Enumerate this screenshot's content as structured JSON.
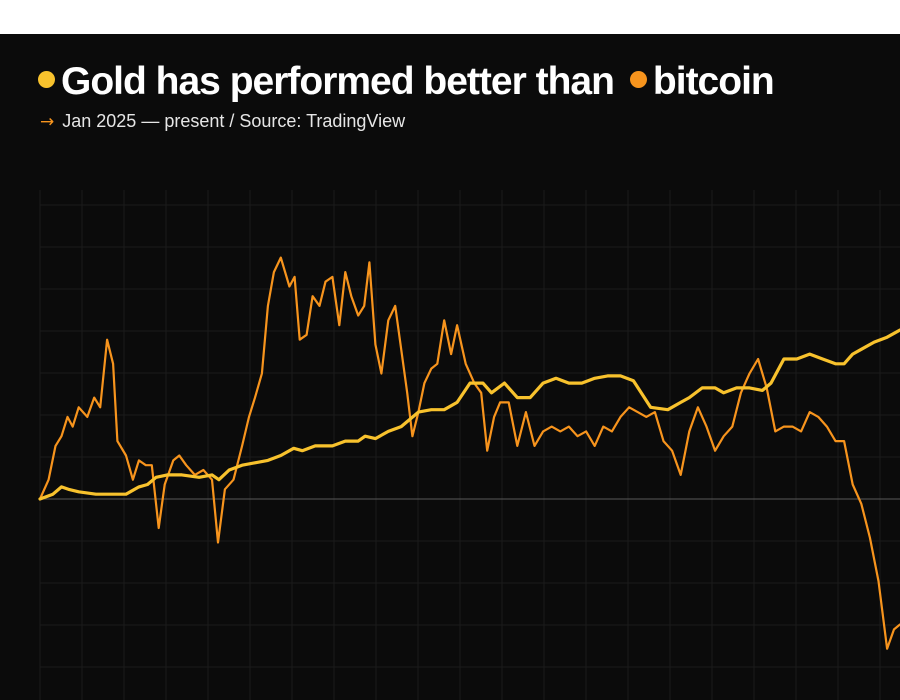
{
  "header": {
    "title_part1": "Gold has performed better than",
    "title_part2": "bitcoin",
    "subtitle": "Jan 2025 — present / Source: TradingView",
    "subtitle_arrow": "→"
  },
  "colors": {
    "background": "#0b0b0b",
    "gold": "#f8c22d",
    "bitcoin": "#f7941d",
    "grid": "#1b1b1b",
    "baseline": "#5a5a5a"
  },
  "chart_data": {
    "type": "line",
    "title": "Gold has performed better than bitcoin",
    "subtitle": "Jan 2025 — present / Source: TradingView",
    "xlabel": "",
    "ylabel": "",
    "grid": true,
    "baseline": 0,
    "ylim": [
      -48,
      70
    ],
    "xlim": [
      0,
      100
    ],
    "series": [
      {
        "name": "Gold",
        "color": "#f8c22d",
        "x": [
          0,
          1.5,
          2.5,
          3.3,
          4.5,
          6.5,
          8.7,
          10,
          11.5,
          12.5,
          13.5,
          14.8,
          16.5,
          18.5,
          20,
          20.8,
          22,
          23.5,
          25,
          26.5,
          28,
          29.5,
          30.5,
          32,
          34,
          35.5,
          37,
          37.8,
          39,
          40.5,
          42,
          44,
          45.5,
          47,
          48.5,
          50,
          51.5,
          52.5,
          54,
          55.5,
          57,
          58.5,
          60,
          61.5,
          63,
          64.5,
          66,
          67.5,
          69,
          71,
          73,
          74.5,
          75.5,
          77,
          78.5,
          79.5,
          81,
          82.5,
          84,
          85,
          86.5,
          88,
          89.5,
          91,
          92.5,
          93.5,
          94.5,
          95.5,
          97,
          98.5,
          100
        ],
        "values": [
          0,
          1,
          2.5,
          2,
          1.5,
          1,
          1,
          1,
          2.5,
          3,
          4.5,
          5,
          5,
          4.5,
          5,
          4,
          6,
          7,
          7.5,
          8,
          9,
          10.5,
          10,
          11,
          11,
          12,
          12,
          13,
          12.5,
          14,
          15,
          18,
          18.5,
          18.5,
          20,
          24,
          24,
          22,
          24,
          21,
          21,
          24,
          25,
          24,
          24,
          25,
          25.5,
          25.5,
          24.5,
          19,
          18.5,
          20,
          21,
          23,
          23,
          22,
          23,
          23,
          22.5,
          24,
          29,
          29,
          30,
          29,
          28,
          28,
          30,
          31,
          32.5,
          33.5,
          35
        ]
      },
      {
        "name": "Bitcoin",
        "color": "#f7941d",
        "x": [
          0,
          1,
          1.8,
          2.5,
          3.2,
          3.8,
          4.5,
          5.5,
          6.3,
          7,
          7.8,
          8.5,
          9,
          10,
          10.8,
          11.5,
          12.3,
          13,
          13.8,
          14.5,
          15.5,
          16.2,
          17,
          18,
          19,
          20,
          20.7,
          21.5,
          22.5,
          23.5,
          24.3,
          25,
          25.8,
          26.5,
          27.2,
          28,
          29,
          29.6,
          30.2,
          31,
          31.7,
          32.5,
          33.2,
          34,
          34.8,
          35.5,
          36.2,
          37,
          37.7,
          38.3,
          39,
          39.7,
          40.5,
          41.3,
          42,
          42.7,
          43.3,
          44,
          44.7,
          45.5,
          46.2,
          47,
          47.8,
          48.5,
          49.5,
          50.5,
          51.3,
          52,
          52.8,
          53.5,
          54.5,
          55.5,
          56.5,
          57.5,
          58.5,
          59.5,
          60.5,
          61.5,
          62.5,
          63.5,
          64.5,
          65.5,
          66.5,
          67.5,
          68.5,
          69.5,
          70.5,
          71.5,
          72.5,
          73.5,
          74.5,
          75.5,
          76.5,
          77.5,
          78.5,
          79.5,
          80.5,
          81.5,
          82.5,
          83.5,
          84.5,
          85.5,
          86.5,
          87.5,
          88.5,
          89.5,
          90.5,
          91.5,
          92.5,
          93.5,
          94.5,
          95.5,
          96.5,
          97.5,
          98.5,
          99.3,
          100
        ],
        "values": [
          0,
          4,
          11,
          13,
          17,
          15,
          19,
          17,
          21,
          19,
          33,
          28,
          12,
          9,
          4,
          8,
          7,
          7,
          -6,
          3,
          8,
          9,
          7,
          5,
          6,
          4,
          -9,
          2,
          4,
          11,
          17,
          21,
          26,
          40,
          47,
          50,
          44,
          46,
          33,
          34,
          42,
          40,
          45,
          46,
          36,
          47,
          42,
          38,
          40,
          49,
          32,
          26,
          37,
          40,
          31,
          22,
          13,
          18,
          24,
          27,
          28,
          37,
          30,
          36,
          28,
          24,
          22,
          10,
          17,
          20,
          20,
          11,
          18,
          11,
          14,
          15,
          14,
          15,
          13,
          14,
          11,
          15,
          14,
          17,
          19,
          18,
          17,
          18,
          12,
          10,
          5,
          14,
          19,
          15,
          10,
          13,
          15,
          22,
          26,
          29,
          23,
          14,
          15,
          15,
          14,
          18,
          17,
          15,
          12,
          12,
          3,
          -1,
          -8,
          -17,
          -31,
          -27,
          -26
        ]
      }
    ]
  }
}
